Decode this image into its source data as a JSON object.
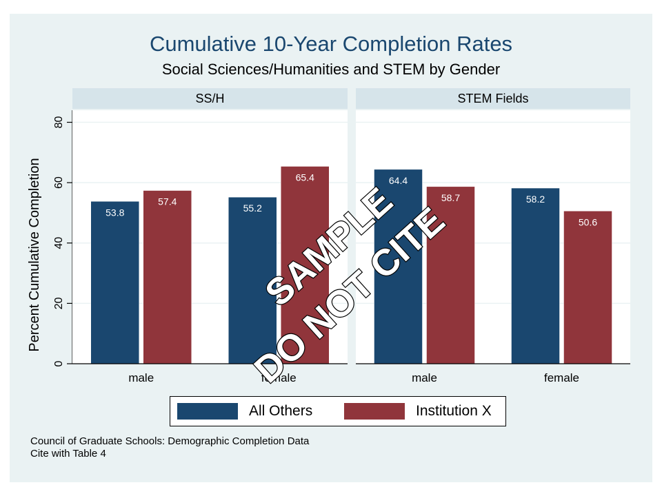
{
  "chart_data": {
    "type": "bar",
    "title": "Cumulative 10-Year Completion Rates",
    "subtitle": "Social Sciences/Humanities and STEM by Gender",
    "ylabel": "Percent Cumulative Completion",
    "ylim": [
      0,
      84
    ],
    "yticks": [
      0,
      20,
      40,
      60,
      80
    ],
    "grid": true,
    "legend_position": "bottom",
    "panels": [
      {
        "label": "SS/H",
        "categories": [
          "male",
          "female"
        ],
        "series": [
          {
            "name": "All Others",
            "values": [
              53.8,
              55.2
            ]
          },
          {
            "name": "Institution X",
            "values": [
              57.4,
              65.4
            ]
          }
        ]
      },
      {
        "label": "STEM Fields",
        "categories": [
          "male",
          "female"
        ],
        "series": [
          {
            "name": "All Others",
            "values": [
              64.4,
              58.2
            ]
          },
          {
            "name": "Institution X",
            "values": [
              58.7,
              50.6
            ]
          }
        ]
      }
    ],
    "colors": {
      "All Others": "#1a476f",
      "Institution X": "#90353b"
    },
    "watermark": [
      "SAMPLE",
      "DO NOT CITE"
    ]
  },
  "note": {
    "line1": "Council of Graduate Schools: Demographic Completion Data",
    "line2": "Cite with Table 4"
  }
}
